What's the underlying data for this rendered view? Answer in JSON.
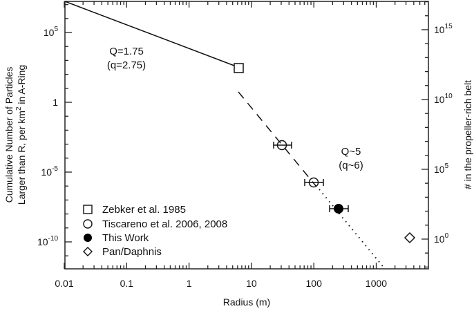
{
  "chart_data": {
    "type": "scatter",
    "title": "",
    "xlabel": "Radius (m)",
    "ylabel_lines": [
      "Cumulative Number of Particles",
      "Larger than R, per km² in A-Ring"
    ],
    "ylabel_right": "# in the propeller-rich belt",
    "xscale": "log",
    "yscale": "log",
    "xlim": [
      0.01,
      7000
    ],
    "ylim": [
      1e-12,
      15000000.0
    ],
    "ylim_right_offset_decades": 9.8,
    "grid": false,
    "x_ticks": [
      {
        "value": 0.01,
        "label": "0.01"
      },
      {
        "value": 0.1,
        "label": "0.1"
      },
      {
        "value": 1,
        "label": "1"
      },
      {
        "value": 10,
        "label": "10"
      },
      {
        "value": 100,
        "label": "100"
      },
      {
        "value": 1000,
        "label": "1000"
      }
    ],
    "y_ticks_left": [
      {
        "exp": 5,
        "base": "10",
        "sup": "5"
      },
      {
        "exp": 0,
        "base": "1",
        "sup": ""
      },
      {
        "exp": -5,
        "base": "10",
        "sup": "-5"
      },
      {
        "exp": -10,
        "base": "10",
        "sup": "-10"
      }
    ],
    "y_ticks_right": [
      {
        "exp": 15,
        "base": "10",
        "sup": "15"
      },
      {
        "exp": 10,
        "base": "10",
        "sup": "10"
      },
      {
        "exp": 5,
        "base": "10",
        "sup": "5"
      },
      {
        "exp": 0,
        "base": "10",
        "sup": "0"
      }
    ],
    "series": [
      {
        "name": "Zebker et al. 1985",
        "marker": "square-open",
        "points": [
          {
            "x": 6.2,
            "y": 300
          }
        ]
      },
      {
        "name": "Tiscareno et al. 2006, 2008",
        "marker": "circle-open",
        "points": [
          {
            "x": 31,
            "y": 0.00085,
            "xerr": [
              23,
              45
            ]
          },
          {
            "x": 100,
            "y": 1.8e-06,
            "xerr": [
              70,
              140
            ]
          }
        ]
      },
      {
        "name": "This Work",
        "marker": "circle-filled",
        "points": [
          {
            "x": 250,
            "y": 2.4e-08,
            "xerr": [
              180,
              360
            ]
          }
        ]
      },
      {
        "name": "Pan/Daphnis",
        "marker": "diamond-open",
        "points": [
          {
            "x": 3500,
            "y": 2e-10,
            "y_right": 1
          }
        ]
      }
    ],
    "lines": [
      {
        "style": "solid",
        "from": {
          "x": 0.01,
          "y": 15000000.0
        },
        "to": {
          "x": 6.2,
          "y": 300
        },
        "label": "Q=1.75 (q=2.75)"
      },
      {
        "style": "dashed",
        "from": {
          "x": 6.5,
          "y": 0.005
        },
        "to": {
          "x": 115,
          "y": 1e-06
        },
        "label": "Q~5 (q~6)"
      },
      {
        "style": "dotted",
        "from": {
          "x": 115,
          "y": 1e-06
        },
        "to": {
          "x": 1300,
          "y": 1e-12
        }
      }
    ],
    "annotations": [
      {
        "line1": "Q=1.75",
        "line2": "(q=2.75)"
      },
      {
        "line1": "Q~5",
        "line2": "(q~6)"
      }
    ],
    "legend": {
      "position": "lower-left",
      "entries": [
        {
          "marker": "square-open",
          "label": "Zebker et al. 1985"
        },
        {
          "marker": "circle-open",
          "label": "Tiscareno et al. 2006, 2008"
        },
        {
          "marker": "circle-filled",
          "label": "This Work"
        },
        {
          "marker": "diamond-open",
          "label": "Pan/Daphnis"
        }
      ]
    }
  }
}
